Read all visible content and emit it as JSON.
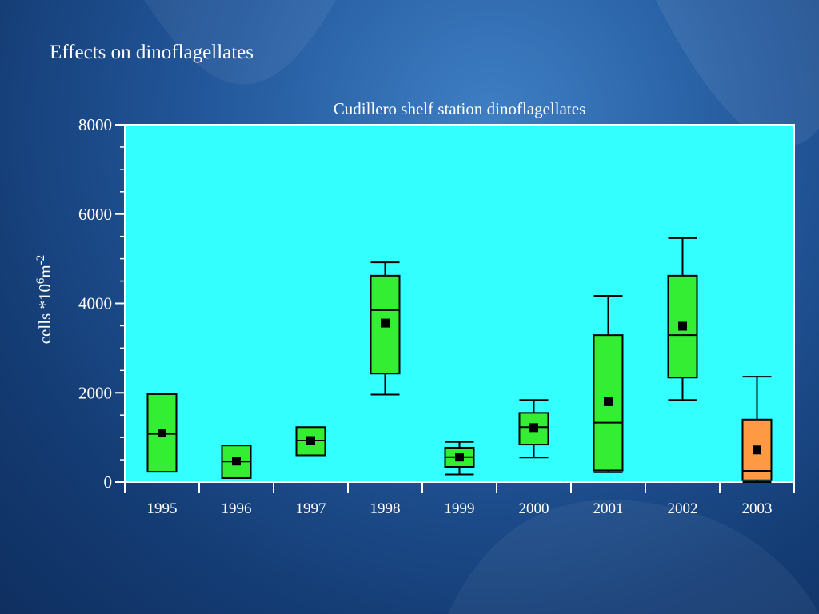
{
  "slide": {
    "title": "Effects on dinoflagellates"
  },
  "colors": {
    "plot_background": "#33ffff",
    "box_fill": "#33ee33",
    "box_fill_highlight": "#ff9944",
    "text": "#ffffff",
    "marks": "#000000"
  },
  "chart_data": {
    "type": "box",
    "title": "Cudillero shelf station dinoflagellates",
    "ylabel": "cells *10⁶m⁻²",
    "ylabel_parts": {
      "main": "cells *10",
      "sup1": "6",
      "mid": "m",
      "sup2": "-2"
    },
    "xlabel": "",
    "ylim": [
      0,
      8000
    ],
    "yticks": [
      0,
      2000,
      4000,
      6000,
      8000
    ],
    "ytick_labels": [
      "0",
      "2000",
      "4000",
      "6000",
      "8000"
    ],
    "minor_ytick_step": 500,
    "grid": false,
    "legend": "none",
    "categories": [
      "1995",
      "1996",
      "1997",
      "1998",
      "1999",
      "2000",
      "2001",
      "2002",
      "2003"
    ],
    "boxes": [
      {
        "year": "1995",
        "whisker_low": 230,
        "q1": 230,
        "median": 1080,
        "q3": 1970,
        "whisker_high": 1970,
        "mean": 1100,
        "highlight": false
      },
      {
        "year": "1996",
        "whisker_low": 90,
        "q1": 90,
        "median": 460,
        "q3": 820,
        "whisker_high": 820,
        "mean": 470,
        "highlight": false
      },
      {
        "year": "1997",
        "whisker_low": 600,
        "q1": 600,
        "median": 930,
        "q3": 1230,
        "whisker_high": 1230,
        "mean": 930,
        "highlight": false
      },
      {
        "year": "1998",
        "whisker_low": 1960,
        "q1": 2430,
        "median": 3850,
        "q3": 4620,
        "whisker_high": 4920,
        "mean": 3560,
        "highlight": false
      },
      {
        "year": "1999",
        "whisker_low": 170,
        "q1": 340,
        "median": 560,
        "q3": 770,
        "whisker_high": 900,
        "mean": 560,
        "highlight": false
      },
      {
        "year": "2000",
        "whisker_low": 550,
        "q1": 840,
        "median": 1230,
        "q3": 1550,
        "whisker_high": 1840,
        "mean": 1220,
        "highlight": false
      },
      {
        "year": "2001",
        "whisker_low": 220,
        "q1": 260,
        "median": 1330,
        "q3": 3290,
        "whisker_high": 4170,
        "mean": 1800,
        "highlight": false
      },
      {
        "year": "2002",
        "whisker_low": 1840,
        "q1": 2340,
        "median": 3290,
        "q3": 4620,
        "whisker_high": 5460,
        "mean": 3490,
        "highlight": false
      },
      {
        "year": "2003",
        "whisker_low": 0,
        "q1": 40,
        "median": 250,
        "q3": 1400,
        "whisker_high": 2360,
        "mean": 720,
        "highlight": true
      }
    ]
  }
}
